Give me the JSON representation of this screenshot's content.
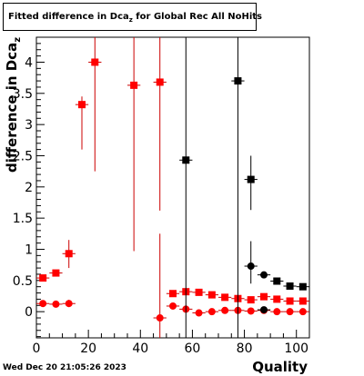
{
  "title": {
    "text_main": "Fitted difference in Dca",
    "text_sub": "z",
    "text_tail": " for Global Rec All NoHits"
  },
  "xlabel": "Quality",
  "ylabel_main": "difference in Dca",
  "ylabel_sub": "z",
  "timestamp": "Wed Dec 20 21:05:26 2023",
  "colors": {
    "red": "#ff0000",
    "black": "#000000",
    "red_err": "#cc0000"
  },
  "chart_data": {
    "type": "scatter",
    "title": "Fitted difference in Dca_z for Global Rec All NoHits",
    "xlabel": "Quality",
    "ylabel": "difference in Dca_z",
    "xlim": [
      0,
      105
    ],
    "ylim": [
      -0.42,
      4.4
    ],
    "x_ticks": [
      0,
      20,
      40,
      60,
      80,
      100
    ],
    "y_ticks": [
      0,
      0.5,
      1,
      1.5,
      2,
      2.5,
      3,
      3.5,
      4
    ],
    "y_tick_labels": [
      "0",
      "0.5",
      "1",
      "1.5",
      "2",
      "2.5",
      "3",
      "3.5",
      "4"
    ],
    "grid": false,
    "series": [
      {
        "marker": "square",
        "color": "#ff0000",
        "points": [
          {
            "x": 2.5,
            "y": 0.54,
            "ylo": 0.5,
            "yhi": 0.58
          },
          {
            "x": 7.5,
            "y": 0.62,
            "ylo": 0.58,
            "yhi": 0.66
          },
          {
            "x": 12.5,
            "y": 0.93,
            "ylo": 0.7,
            "yhi": 1.15
          },
          {
            "x": 17.5,
            "y": 3.32,
            "ylo": 2.6,
            "yhi": 3.45
          },
          {
            "x": 22.5,
            "y": 4.0,
            "ylo": 2.25,
            "yhi": 4.4
          },
          {
            "x": 37.5,
            "y": 3.63,
            "ylo": 0.97,
            "yhi": 4.4
          },
          {
            "x": 47.5,
            "y": 3.68,
            "ylo": 1.62,
            "yhi": 4.4
          },
          {
            "x": 52.5,
            "y": 0.29,
            "ylo": 0.26,
            "yhi": 0.32
          },
          {
            "x": 57.5,
            "y": 0.32,
            "ylo": 0.3,
            "yhi": 0.34
          },
          {
            "x": 62.5,
            "y": 0.31,
            "ylo": 0.29,
            "yhi": 0.33
          },
          {
            "x": 67.5,
            "y": 0.27,
            "ylo": 0.25,
            "yhi": 0.29
          },
          {
            "x": 72.5,
            "y": 0.23,
            "ylo": 0.21,
            "yhi": 0.25
          },
          {
            "x": 77.5,
            "y": 0.21,
            "ylo": 0.19,
            "yhi": 0.23
          },
          {
            "x": 82.5,
            "y": 0.19,
            "ylo": 0.17,
            "yhi": 0.21
          },
          {
            "x": 87.5,
            "y": 0.24,
            "ylo": 0.22,
            "yhi": 0.26
          },
          {
            "x": 92.5,
            "y": 0.2,
            "ylo": 0.18,
            "yhi": 0.22
          },
          {
            "x": 97.5,
            "y": 0.17,
            "ylo": 0.15,
            "yhi": 0.19
          },
          {
            "x": 102.5,
            "y": 0.17,
            "ylo": 0.15,
            "yhi": 0.19
          }
        ]
      },
      {
        "marker": "circle",
        "color": "#ff0000",
        "points": [
          {
            "x": 2.5,
            "y": 0.13,
            "ylo": 0.11,
            "yhi": 0.15
          },
          {
            "x": 7.5,
            "y": 0.12,
            "ylo": 0.1,
            "yhi": 0.14
          },
          {
            "x": 12.5,
            "y": 0.13,
            "ylo": 0.09,
            "yhi": 0.19
          },
          {
            "x": 47.5,
            "y": -0.1,
            "ylo": -0.42,
            "yhi": 1.25
          },
          {
            "x": 52.5,
            "y": 0.09,
            "ylo": 0.07,
            "yhi": 0.11
          },
          {
            "x": 57.5,
            "y": 0.04,
            "ylo": 0.02,
            "yhi": 0.06
          },
          {
            "x": 62.5,
            "y": -0.02,
            "ylo": -0.04,
            "yhi": 0.0
          },
          {
            "x": 67.5,
            "y": 0.0,
            "ylo": -0.02,
            "yhi": 0.02
          },
          {
            "x": 72.5,
            "y": 0.02,
            "ylo": 0.0,
            "yhi": 0.04
          },
          {
            "x": 77.5,
            "y": 0.02,
            "ylo": 0.0,
            "yhi": 0.04
          },
          {
            "x": 82.5,
            "y": 0.01,
            "ylo": -0.01,
            "yhi": 0.03
          },
          {
            "x": 87.5,
            "y": 0.02,
            "ylo": 0.0,
            "yhi": 0.04
          },
          {
            "x": 92.5,
            "y": 0.0,
            "ylo": -0.02,
            "yhi": 0.02
          },
          {
            "x": 97.5,
            "y": 0.0,
            "ylo": -0.02,
            "yhi": 0.02
          },
          {
            "x": 102.5,
            "y": 0.0,
            "ylo": -0.02,
            "yhi": 0.02
          }
        ]
      },
      {
        "marker": "square",
        "color": "#000000",
        "points": [
          {
            "x": 57.5,
            "y": 2.43,
            "ylo": -0.42,
            "yhi": 4.4
          },
          {
            "x": 77.5,
            "y": 3.7,
            "ylo": -0.42,
            "yhi": 4.4
          },
          {
            "x": 82.5,
            "y": 2.12,
            "ylo": 1.63,
            "yhi": 2.5
          },
          {
            "x": 92.5,
            "y": 0.49,
            "ylo": 0.47,
            "yhi": 0.52
          },
          {
            "x": 97.5,
            "y": 0.41,
            "ylo": 0.39,
            "yhi": 0.43
          },
          {
            "x": 102.5,
            "y": 0.4,
            "ylo": 0.38,
            "yhi": 0.42
          }
        ]
      },
      {
        "marker": "circle",
        "color": "#000000",
        "points": [
          {
            "x": 82.5,
            "y": 0.73,
            "ylo": 0.45,
            "yhi": 1.13
          },
          {
            "x": 87.5,
            "y": 0.59,
            "ylo": 0.56,
            "yhi": 0.62
          },
          {
            "x": 87.5,
            "y": 0.03,
            "ylo": 0.01,
            "yhi": 0.05
          }
        ]
      }
    ]
  }
}
